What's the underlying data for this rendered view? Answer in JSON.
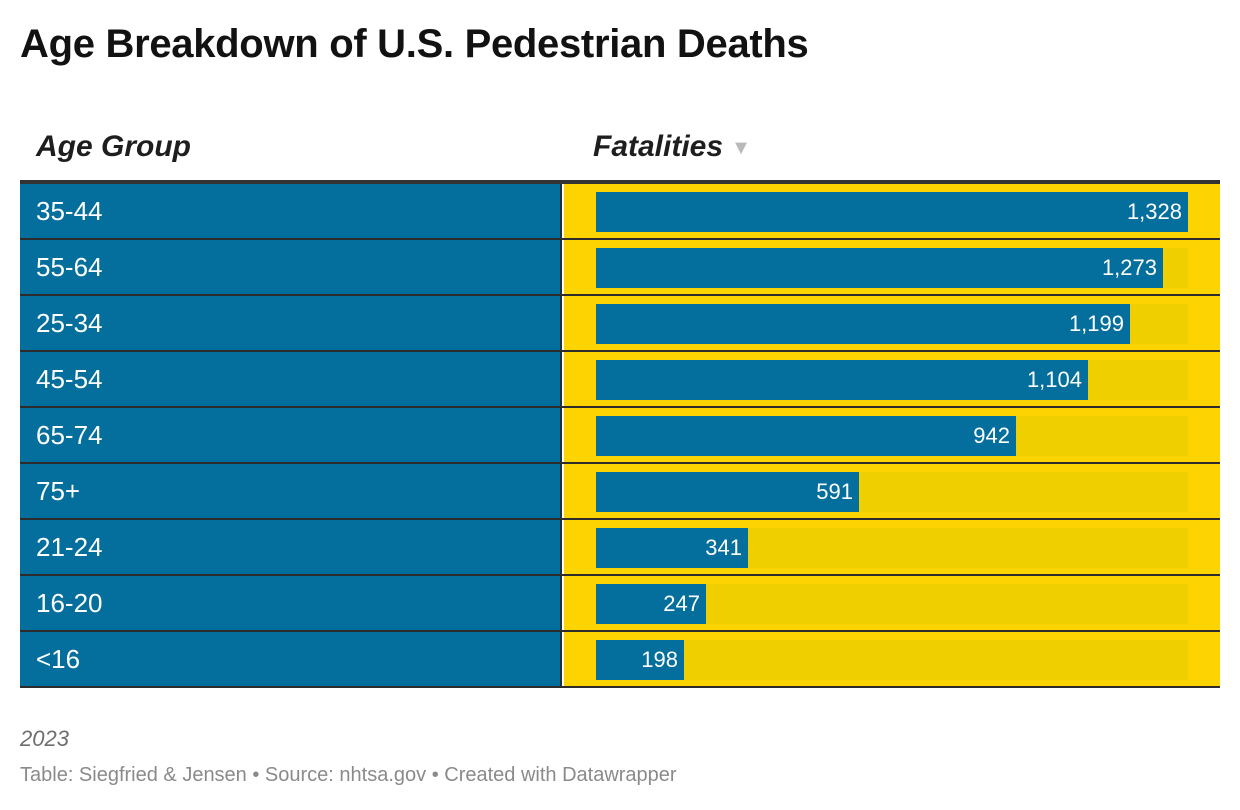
{
  "title": "Age Breakdown of U.S. Pedestrian Deaths",
  "columns": {
    "age_group": "Age Group",
    "fatalities": "Fatalities",
    "sort_icon": "sort-descending-icon",
    "sort_glyph": "▼"
  },
  "colors": {
    "bar": "#046e9c",
    "cell_background": "#fdd401",
    "bar_track": "#f0cf00",
    "age_cell": "#046e9c"
  },
  "chart_data": {
    "type": "table",
    "title": "Age Breakdown of U.S. Pedestrian Deaths",
    "columns": [
      "Age Group",
      "Fatalities"
    ],
    "categories": [
      "35-44",
      "55-64",
      "25-34",
      "45-54",
      "65-74",
      "75+",
      "21-24",
      "16-20",
      "<16"
    ],
    "values": [
      1328,
      1273,
      1199,
      1104,
      942,
      591,
      341,
      247,
      198
    ],
    "value_labels": [
      "1,328",
      "1,273",
      "1,199",
      "1,104",
      "942",
      "591",
      "341",
      "247",
      "198"
    ],
    "bar_max": 1328,
    "sorted_by": "Fatalities",
    "sort_order": "descending"
  },
  "notes": "2023",
  "footer": "Table: Siegfried & Jensen • Source: nhtsa.gov • Created with Datawrapper"
}
